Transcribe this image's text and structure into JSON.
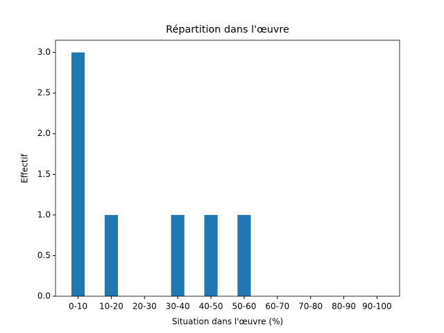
{
  "chart_data": {
    "type": "bar",
    "title": "Répartition dans l'œuvre",
    "x_label": "Situation dans l'œuvre (%)",
    "y_label": "Effectif",
    "categories": [
      "0-10",
      "10-20",
      "20-30",
      "30-40",
      "40-50",
      "50-60",
      "60-70",
      "70-80",
      "80-90",
      "90-100"
    ],
    "values": [
      3,
      1,
      0,
      1,
      1,
      1,
      0,
      0,
      0,
      0
    ],
    "color": "#1f77b4",
    "ylim": [
      0,
      3.15
    ],
    "yticks": [
      {
        "value": 0,
        "label": "0.0"
      },
      {
        "value": 0.5,
        "label": "0.5"
      },
      {
        "value": 1,
        "label": "1.0"
      },
      {
        "value": 1.5,
        "label": "1.5"
      },
      {
        "value": 2,
        "label": "2.0"
      },
      {
        "value": 2.5,
        "label": "2.5"
      },
      {
        "value": 3,
        "label": "3.0"
      }
    ]
  }
}
